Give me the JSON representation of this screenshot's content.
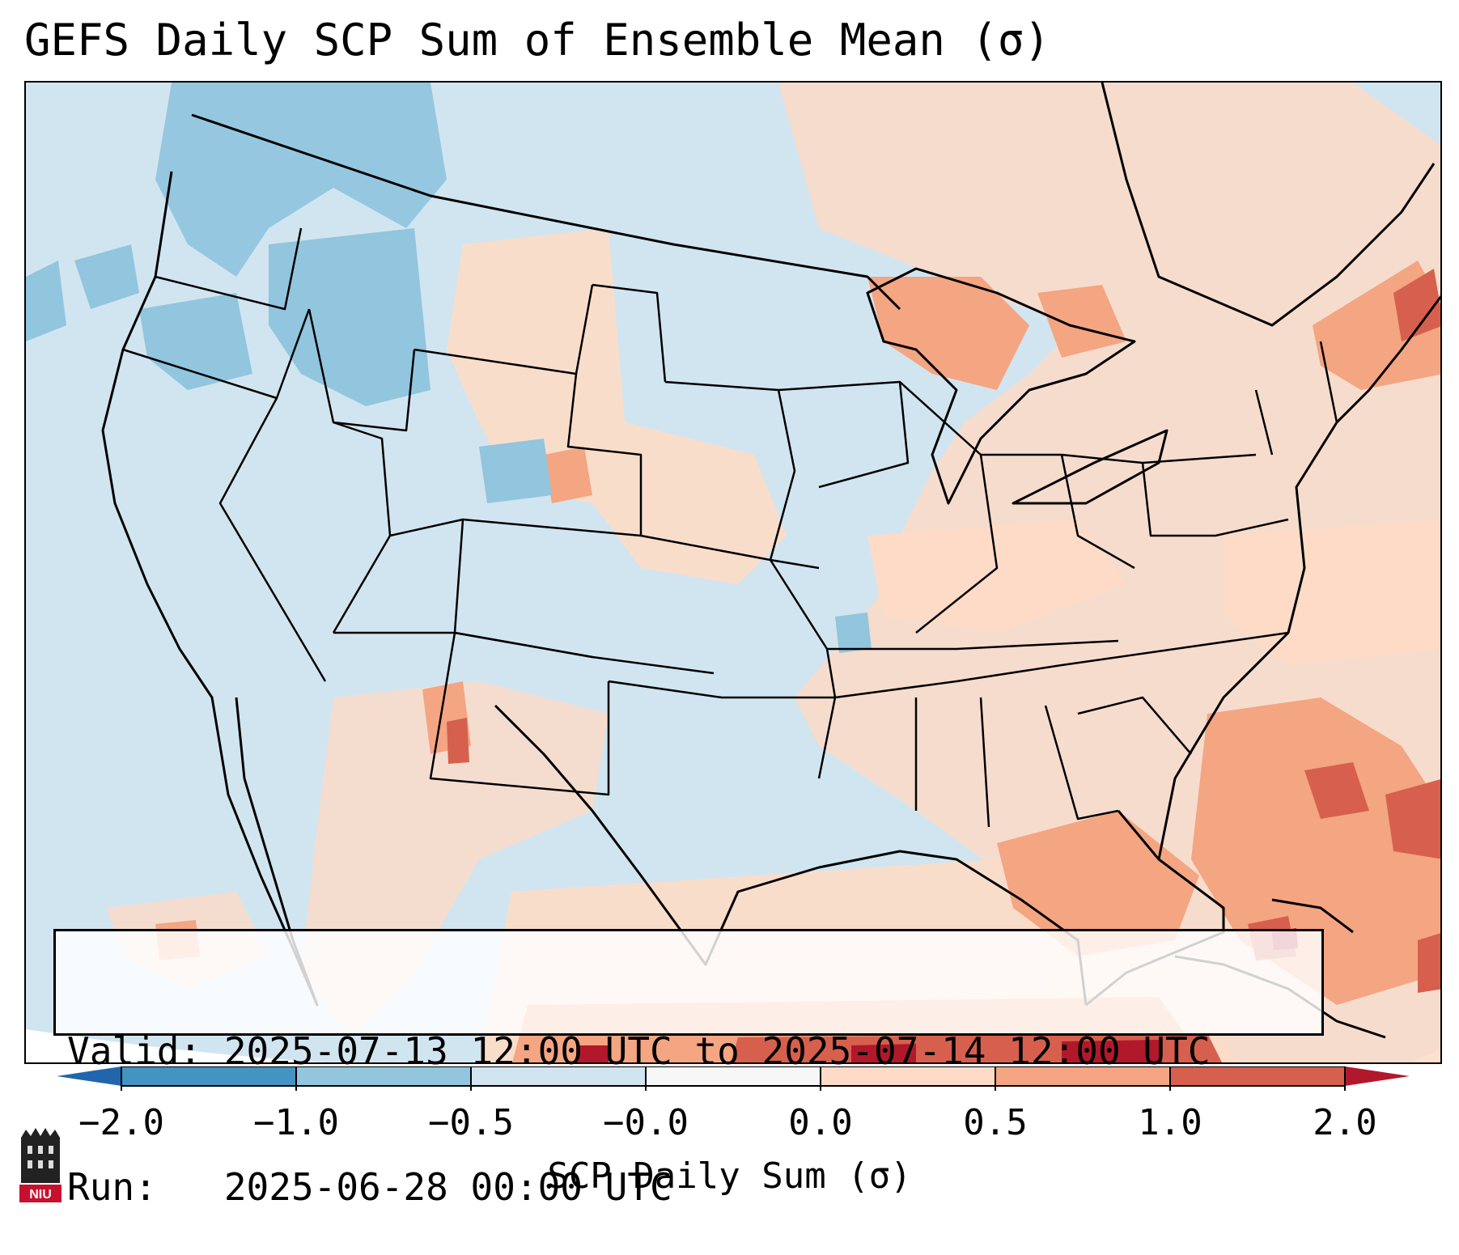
{
  "title": "GEFS Daily SCP Sum of Ensemble Mean (σ)",
  "info": {
    "valid_line": "Valid: 2025-07-13 12:00 UTC to 2025-07-14 12:00 UTC",
    "run_line": "Run:   2025-06-28 00:00 UTC"
  },
  "colorbar": {
    "label": "SCP Daily Sum (σ)",
    "ticks": [
      "−2.0",
      "−1.0",
      "−0.5",
      "−0.0",
      "0.0",
      "0.5",
      "1.0",
      "2.0"
    ],
    "colors": [
      "#4393c3",
      "#92c5de",
      "#d1e5f0",
      "#f7f7f7",
      "#fddbc7",
      "#f4a582",
      "#d6604d",
      "#b2182b"
    ]
  },
  "logo": {
    "text": "NIU"
  }
}
